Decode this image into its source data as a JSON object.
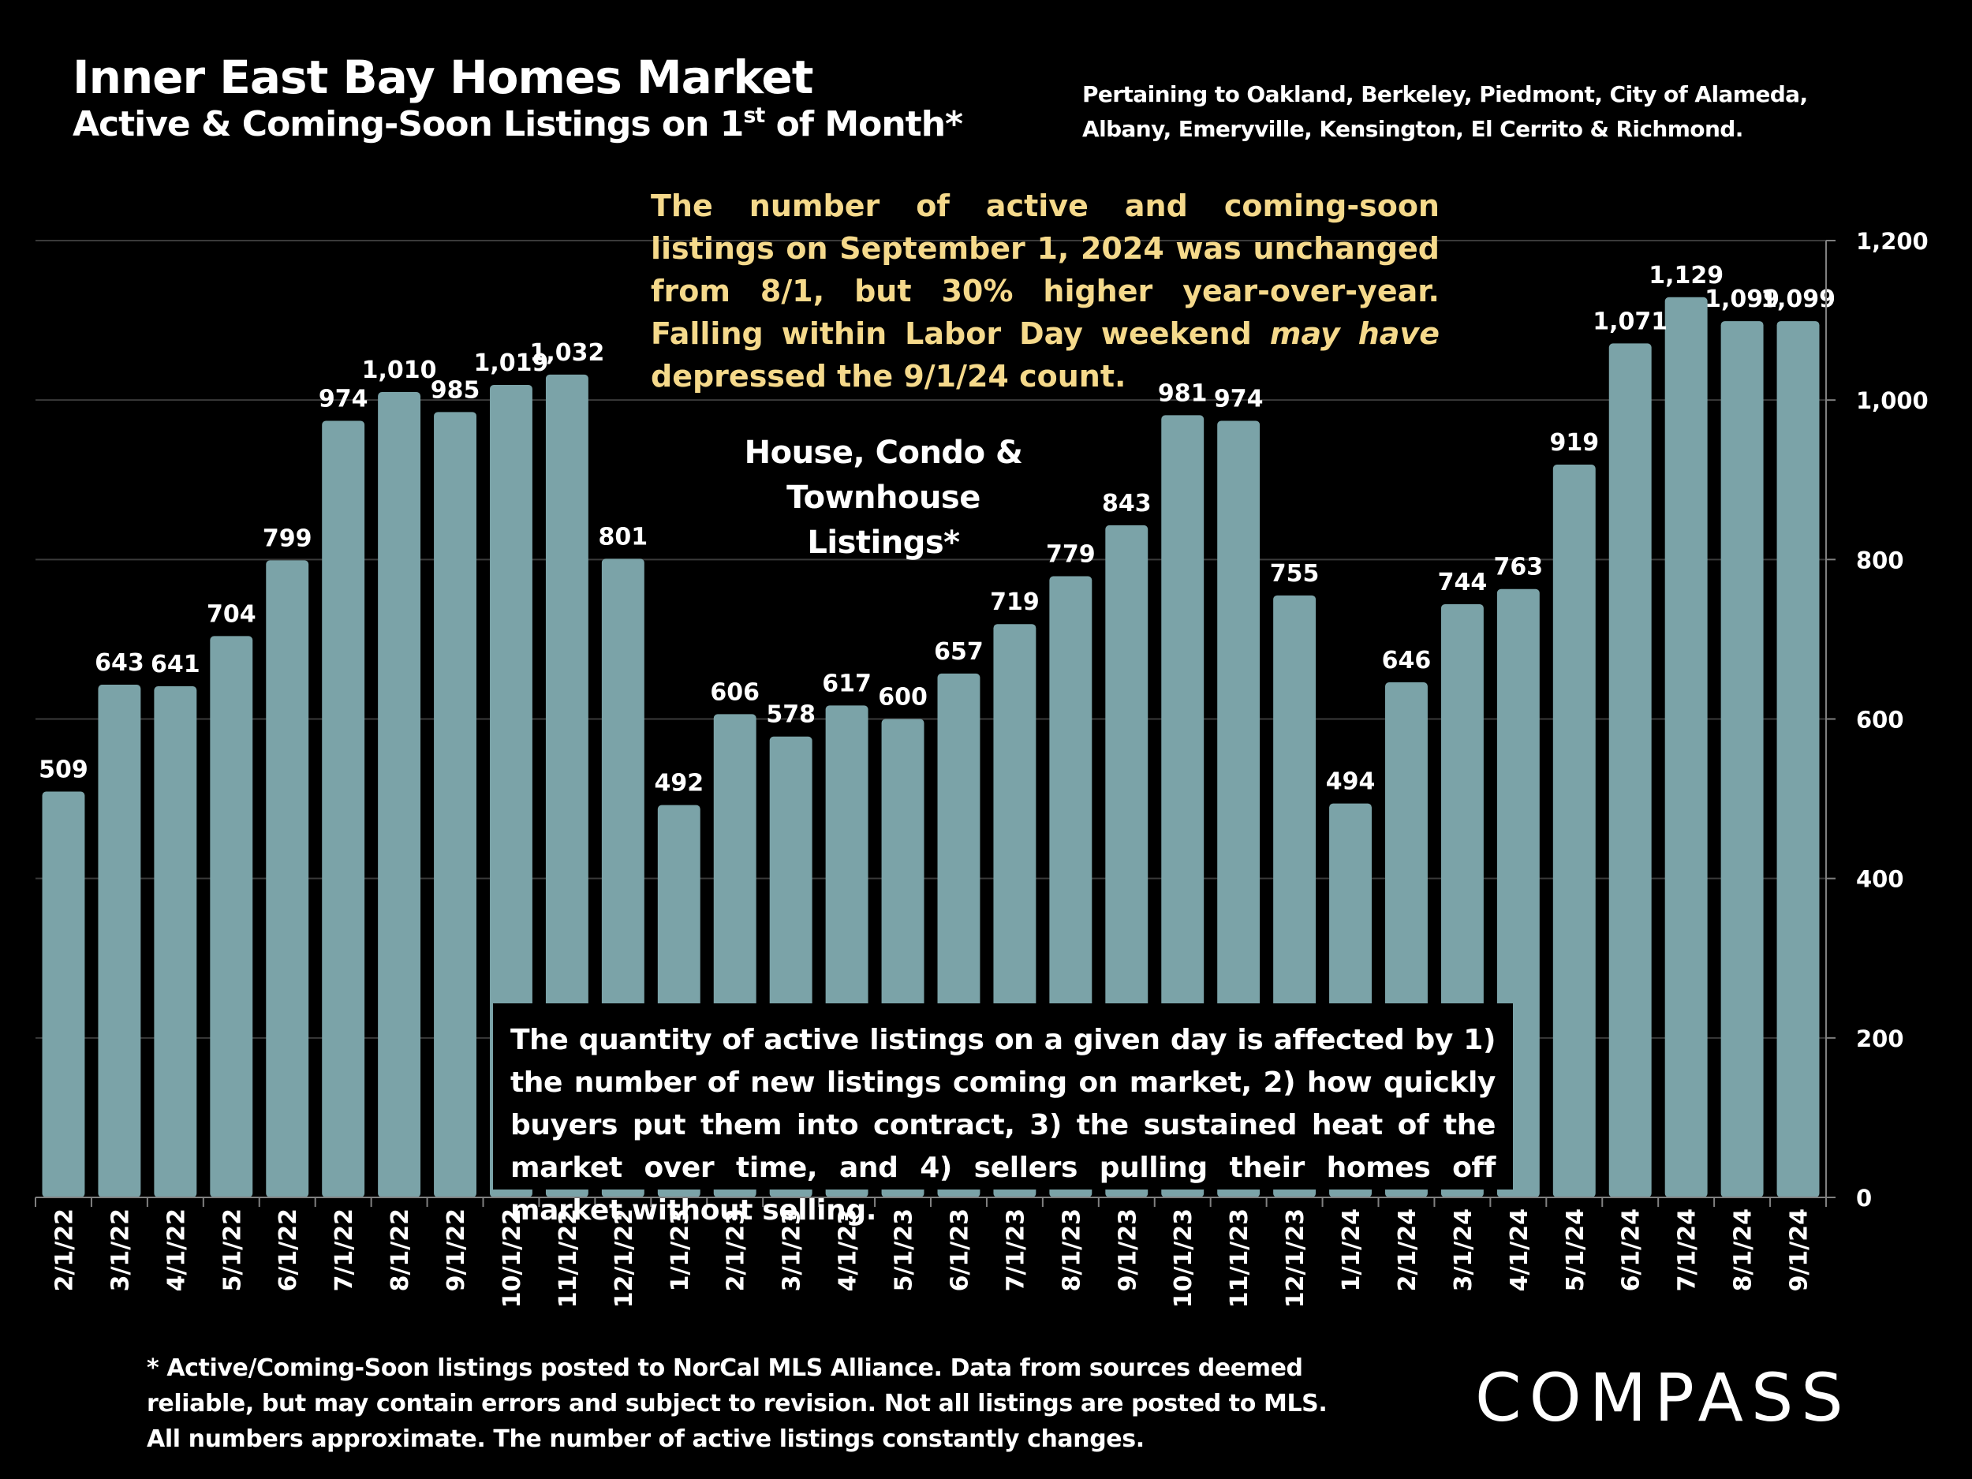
{
  "title": "Inner East Bay Homes Market",
  "subtitle": {
    "prefix": "Active & Coming-Soon Listings on 1",
    "sup": "st",
    "suffix": " of Month*"
  },
  "pertaining": [
    "Pertaining to Oakland, Berkeley, Piedmont, City of Alameda,",
    "Albany, Emeryville, Kensington, El Cerrito & Richmond."
  ],
  "callout": {
    "before": "The number of active and coming-soon listings on September 1, 2024 was unchanged from 8/1, but 30% higher year-over-year. Falling within Labor Day weekend ",
    "emphasis": "may have",
    "after": " depressed the 9/1/24 count."
  },
  "series_label": [
    "House, Condo &",
    "Townhouse Listings*"
  ],
  "note": "The quantity of active listings on a given day is affected by 1) the number of new listings coming on market, 2) how quickly buyers put them into contract, 3) the sustained heat of the market over time, and 4) sellers pulling their homes off market without selling.",
  "footnote": [
    "* Active/Coming-Soon listings posted to NorCal MLS Alliance.  Data from sources deemed",
    "reliable, but may contain errors and subject to revision.  Not all listings are posted to MLS.",
    "All numbers approximate. The number of active listings constantly changes."
  ],
  "logo": "COMPASS",
  "colors": {
    "background": "#000000",
    "bar": "#7ba3a8",
    "callout": "#f5d98b",
    "gridline": "#3a3a3a",
    "axis": "#808080"
  },
  "chart_data": {
    "type": "bar",
    "categories": [
      "2/1/22",
      "3/1/22",
      "4/1/22",
      "5/1/22",
      "6/1/22",
      "7/1/22",
      "8/1/22",
      "9/1/22",
      "10/1/22",
      "11/1/22",
      "12/1/22",
      "1/1/23",
      "2/1/23",
      "3/1/23",
      "4/1/23",
      "5/1/23",
      "6/1/23",
      "7/1/23",
      "8/1/23",
      "9/1/23",
      "10/1/23",
      "11/1/23",
      "12/1/23",
      "1/1/24",
      "2/1/24",
      "3/1/24",
      "4/1/24",
      "5/1/24",
      "6/1/24",
      "7/1/24",
      "8/1/24",
      "9/1/24"
    ],
    "values": [
      509,
      643,
      641,
      704,
      799,
      974,
      1010,
      985,
      1019,
      1032,
      801,
      492,
      606,
      578,
      617,
      600,
      657,
      719,
      779,
      843,
      981,
      974,
      755,
      494,
      646,
      744,
      763,
      919,
      1071,
      1129,
      1099,
      1099
    ],
    "value_labels": [
      "509",
      "643",
      "641",
      "704",
      "799",
      "974",
      "1,010",
      "985",
      "1,019",
      "1,032",
      "801",
      "492",
      "606",
      "578",
      "617",
      "600",
      "657",
      "719",
      "779",
      "843",
      "981",
      "974",
      "755",
      "494",
      "646",
      "744",
      "763",
      "919",
      "1,071",
      "1,129",
      "1,099",
      "1,099"
    ],
    "ylim": [
      0,
      1200
    ],
    "yticks": [
      0,
      200,
      400,
      600,
      800,
      1000,
      1200
    ],
    "ytick_labels": [
      "0",
      "200",
      "400",
      "600",
      "800",
      "1,000",
      "1,200"
    ],
    "y_axis_side": "right",
    "grid": true
  }
}
